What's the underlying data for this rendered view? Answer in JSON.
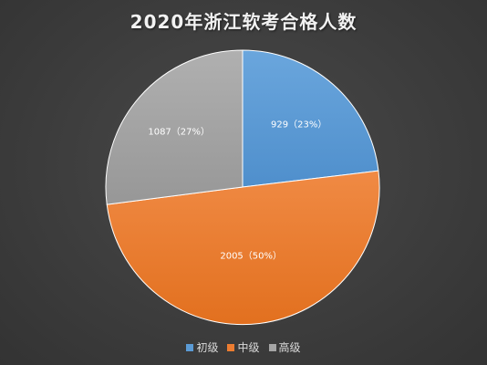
{
  "chart_data": {
    "type": "pie",
    "title": "2020年浙江软考合格人数",
    "categories": [
      "初级",
      "中级",
      "高级"
    ],
    "values": [
      929,
      2005,
      1087
    ],
    "percent_labels": [
      "23%",
      "50%",
      "27%"
    ],
    "data_labels": [
      "929（23%）",
      "2005（50%）",
      "1087（27%）"
    ],
    "colors": [
      "#5b9bd5",
      "#ed7d31",
      "#a5a5a5"
    ],
    "legend_position": "bottom",
    "start_angle": "12 o'clock, clockwise"
  }
}
